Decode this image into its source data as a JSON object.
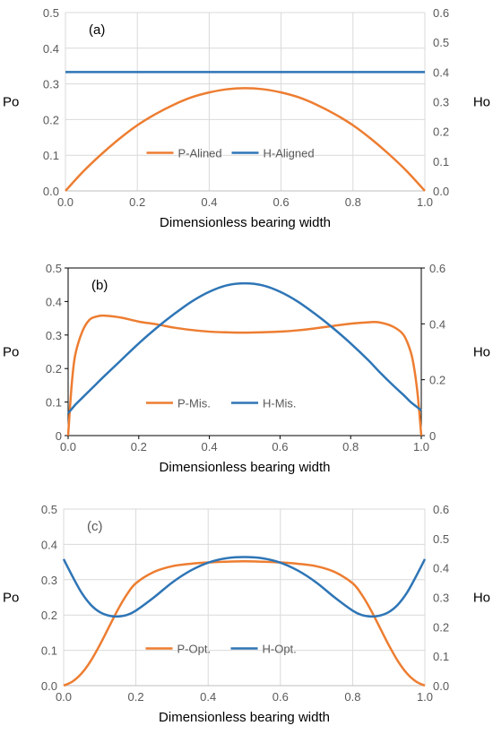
{
  "chart_data": [
    {
      "type": "line",
      "panel_label": "(a)",
      "xlabel": "Dimensionless bearing width",
      "ylabel_left": "Po",
      "ylabel_right": "Ho",
      "xlim": [
        0,
        1
      ],
      "ylim_left": [
        0,
        0.5
      ],
      "ylim_right": [
        0,
        0.6
      ],
      "x_ticks": [
        "0.0",
        "0.2",
        "0.4",
        "0.6",
        "0.8",
        "1.0"
      ],
      "y_left_ticks": [
        "0.0",
        "0.1",
        "0.2",
        "0.3",
        "0.4",
        "0.5"
      ],
      "y_right_ticks": [
        "0.0",
        "0.1",
        "0.2",
        "0.3",
        "0.4",
        "0.5",
        "0.6"
      ],
      "grid": true,
      "legend_position": "center",
      "x": [
        0,
        0.05,
        0.1,
        0.15,
        0.2,
        0.25,
        0.3,
        0.35,
        0.4,
        0.45,
        0.5,
        0.55,
        0.6,
        0.65,
        0.7,
        0.75,
        0.8,
        0.85,
        0.9,
        0.95,
        1.0
      ],
      "series": [
        {
          "name": "P-Alined",
          "axis": "left",
          "color": "#ED7D31",
          "values": [
            0,
            0.055,
            0.103,
            0.146,
            0.184,
            0.215,
            0.241,
            0.262,
            0.276,
            0.285,
            0.288,
            0.285,
            0.276,
            0.262,
            0.241,
            0.215,
            0.184,
            0.146,
            0.103,
            0.055,
            0
          ]
        },
        {
          "name": "H-Aligned",
          "axis": "right",
          "color": "#2E75B6",
          "values": [
            0.4,
            0.4,
            0.4,
            0.4,
            0.4,
            0.4,
            0.4,
            0.4,
            0.4,
            0.4,
            0.4,
            0.4,
            0.4,
            0.4,
            0.4,
            0.4,
            0.4,
            0.4,
            0.4,
            0.4,
            0.4
          ]
        }
      ]
    },
    {
      "type": "line",
      "panel_label": "(b)",
      "xlabel": "Dimensionless bearing width",
      "ylabel_left": "Po",
      "ylabel_right": "Ho",
      "xlim": [
        0,
        1
      ],
      "ylim_left": [
        0,
        0.5
      ],
      "ylim_right": [
        0,
        0.6
      ],
      "x_ticks": [
        "0.0",
        "0.2",
        "0.4",
        "0.6",
        "0.8",
        "1.0"
      ],
      "y_left_ticks": [
        "0",
        "0.1",
        "0.2",
        "0.3",
        "0.4",
        "0.5"
      ],
      "y_right_ticks": [
        "0",
        "0.2",
        "0.4",
        "0.6"
      ],
      "grid": false,
      "legend_position": "center",
      "x": [
        0,
        0.01,
        0.02,
        0.04,
        0.06,
        0.08,
        0.1,
        0.15,
        0.2,
        0.25,
        0.3,
        0.35,
        0.4,
        0.45,
        0.5,
        0.55,
        0.6,
        0.65,
        0.7,
        0.75,
        0.8,
        0.85,
        0.88,
        0.92,
        0.95,
        0.97,
        0.98,
        0.99,
        1.0
      ],
      "series": [
        {
          "name": "P-Mis.",
          "axis": "left",
          "color": "#ED7D31",
          "values": [
            0,
            0.15,
            0.24,
            0.31,
            0.345,
            0.355,
            0.358,
            0.352,
            0.34,
            0.332,
            0.322,
            0.315,
            0.31,
            0.308,
            0.307,
            0.308,
            0.31,
            0.314,
            0.32,
            0.327,
            0.334,
            0.338,
            0.338,
            0.325,
            0.3,
            0.25,
            0.2,
            0.12,
            0
          ]
        },
        {
          "name": "H-Mis.",
          "axis": "right",
          "color": "#2E75B6",
          "values": [
            0.08,
            0.095,
            0.11,
            0.135,
            0.16,
            0.185,
            0.21,
            0.27,
            0.33,
            0.385,
            0.435,
            0.48,
            0.515,
            0.538,
            0.545,
            0.538,
            0.515,
            0.48,
            0.435,
            0.385,
            0.33,
            0.27,
            0.23,
            0.18,
            0.145,
            0.12,
            0.11,
            0.1,
            0.09
          ]
        }
      ]
    },
    {
      "type": "line",
      "panel_label": "(c)",
      "xlabel": "Dimensionless bearing width",
      "ylabel_left": "Po",
      "ylabel_right": "Ho",
      "xlim": [
        0,
        1
      ],
      "ylim_left": [
        0,
        0.5
      ],
      "ylim_right": [
        0,
        0.6
      ],
      "x_ticks": [
        "0.0",
        "0.2",
        "0.4",
        "0.6",
        "0.8",
        "1.0"
      ],
      "y_left_ticks": [
        "0.0",
        "0.1",
        "0.2",
        "0.3",
        "0.4",
        "0.5"
      ],
      "y_right_ticks": [
        "0.0",
        "0.1",
        "0.2",
        "0.3",
        "0.4",
        "0.5",
        "0.6"
      ],
      "grid": true,
      "legend_position": "center",
      "x": [
        0,
        0.025,
        0.05,
        0.075,
        0.1,
        0.125,
        0.15,
        0.175,
        0.2,
        0.25,
        0.3,
        0.35,
        0.4,
        0.45,
        0.5,
        0.55,
        0.6,
        0.65,
        0.7,
        0.75,
        0.8,
        0.825,
        0.85,
        0.875,
        0.9,
        0.925,
        0.95,
        0.975,
        1.0
      ],
      "series": [
        {
          "name": "P-Opt.",
          "axis": "left",
          "color": "#ED7D31",
          "values": [
            0,
            0.012,
            0.035,
            0.07,
            0.115,
            0.165,
            0.215,
            0.258,
            0.29,
            0.322,
            0.338,
            0.345,
            0.349,
            0.351,
            0.352,
            0.351,
            0.349,
            0.345,
            0.338,
            0.322,
            0.29,
            0.258,
            0.215,
            0.165,
            0.115,
            0.07,
            0.035,
            0.012,
            0
          ]
        },
        {
          "name": "H-Opt.",
          "axis": "right",
          "color": "#2E75B6",
          "values": [
            0.43,
            0.37,
            0.315,
            0.275,
            0.25,
            0.238,
            0.235,
            0.24,
            0.255,
            0.3,
            0.35,
            0.39,
            0.418,
            0.433,
            0.437,
            0.433,
            0.418,
            0.39,
            0.35,
            0.3,
            0.255,
            0.24,
            0.235,
            0.238,
            0.25,
            0.275,
            0.315,
            0.37,
            0.43
          ]
        }
      ]
    }
  ]
}
